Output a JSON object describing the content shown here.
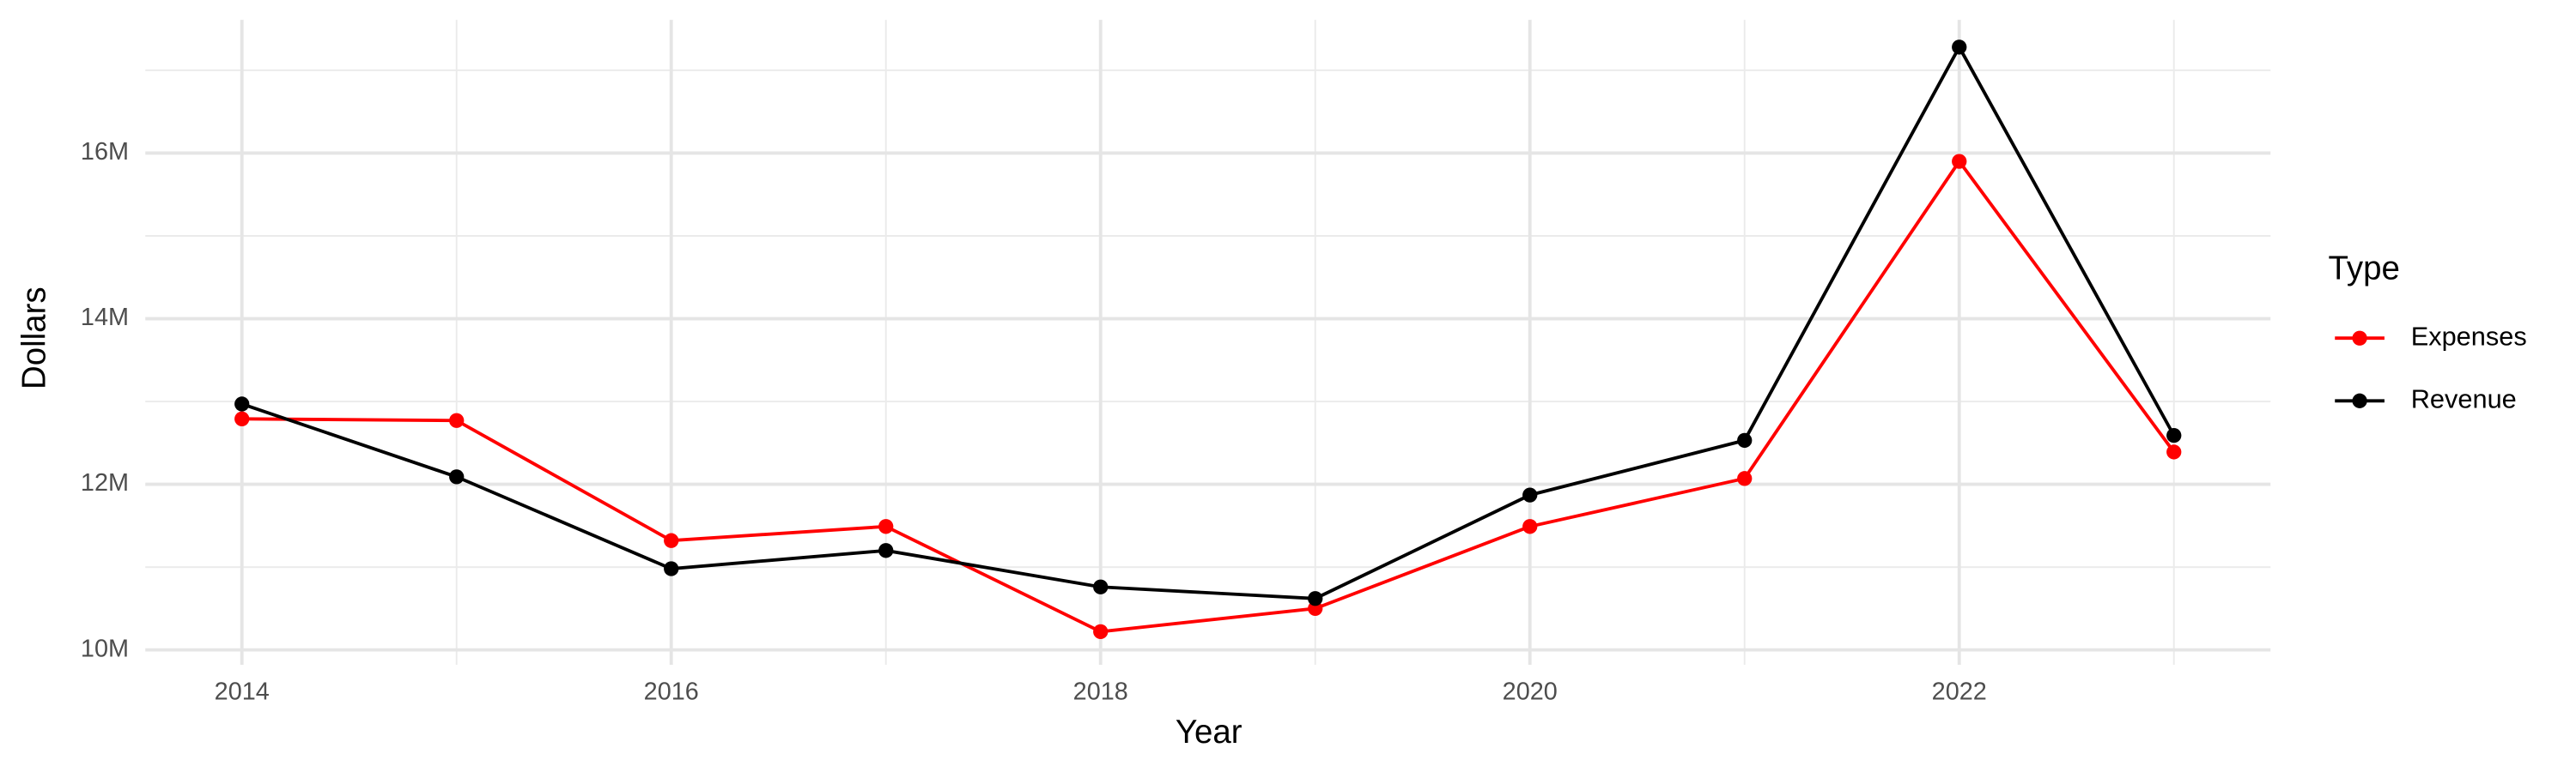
{
  "chart_data": {
    "type": "line",
    "x_label": "Year",
    "y_label": "Dollars",
    "legend_title": "Type",
    "x": [
      2014,
      2015,
      2016,
      2017,
      2018,
      2019,
      2020,
      2021,
      2022,
      2023
    ],
    "series": [
      {
        "name": "Expenses",
        "color": "#ff0000",
        "values": [
          12790000,
          12770000,
          11320000,
          11490000,
          10220000,
          10500000,
          11490000,
          12070000,
          15900000,
          12390000
        ]
      },
      {
        "name": "Revenue",
        "color": "#000000",
        "values": [
          12970000,
          12090000,
          10980000,
          11200000,
          10760000,
          10620000,
          11870000,
          12530000,
          17280000,
          12590000
        ]
      }
    ],
    "xlim": [
      2013.55,
      2023.45
    ],
    "xticks": [
      2014,
      2016,
      2018,
      2020,
      2022
    ],
    "ylim": [
      9820000,
      17610000
    ],
    "yticks": [
      {
        "value": 10000000,
        "label": "10M"
      },
      {
        "value": 12000000,
        "label": "12M"
      },
      {
        "value": 14000000,
        "label": "14M"
      },
      {
        "value": 16000000,
        "label": "16M"
      }
    ],
    "grid": true,
    "legend_position": "right"
  }
}
